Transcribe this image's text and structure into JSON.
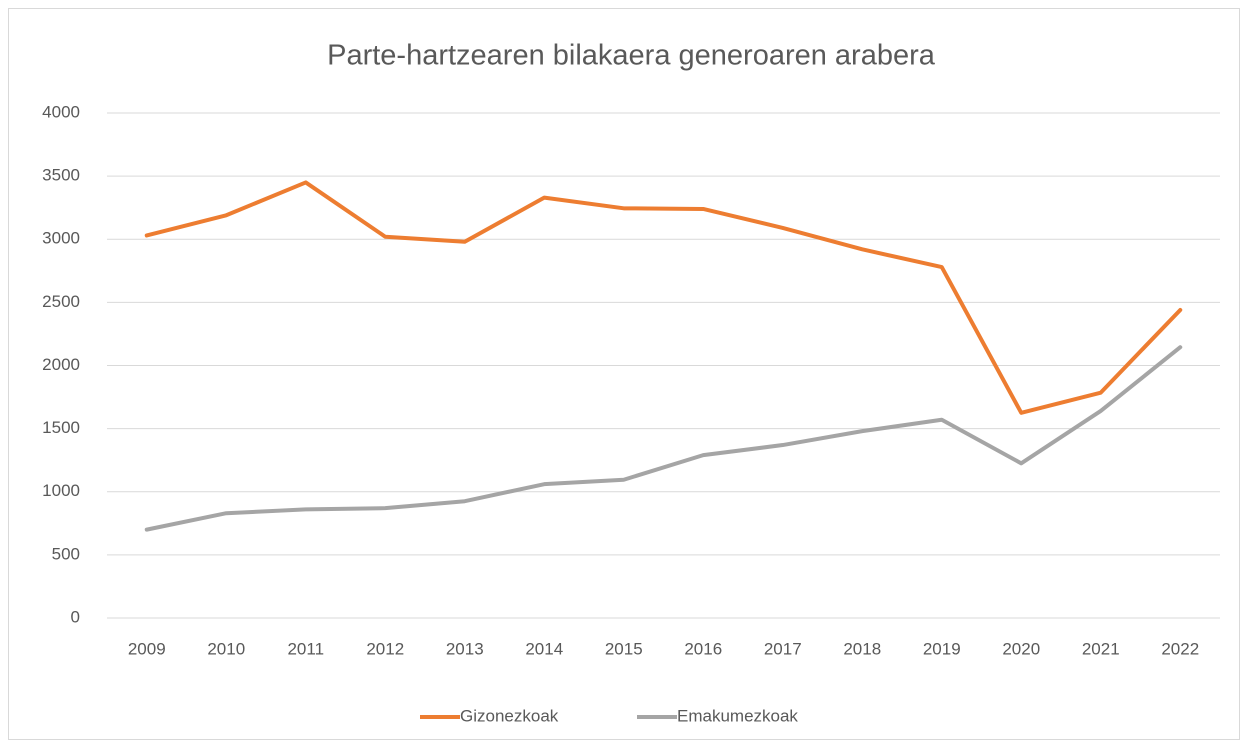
{
  "chart_data": {
    "type": "line",
    "title": "Parte-hartzearen bilakaera generoaren arabera",
    "categories": [
      "2009",
      "2010",
      "2011",
      "2012",
      "2013",
      "2014",
      "2015",
      "2016",
      "2017",
      "2018",
      "2019",
      "2020",
      "2021",
      "2022"
    ],
    "series": [
      {
        "name": "Gizonezkoak",
        "color": "#ed7d31",
        "values": [
          3030,
          3190,
          3450,
          3020,
          2980,
          3330,
          3245,
          3240,
          3090,
          2920,
          2780,
          1625,
          1785,
          2440
        ]
      },
      {
        "name": "Emakumezkoak",
        "color": "#a5a5a5",
        "values": [
          700,
          830,
          860,
          870,
          925,
          1060,
          1095,
          1290,
          1370,
          1480,
          1570,
          1225,
          1640,
          2145
        ]
      }
    ],
    "ylim": [
      0,
      4000
    ],
    "yticks": [
      0,
      500,
      1000,
      1500,
      2000,
      2500,
      3000,
      3500,
      4000
    ],
    "grid": true,
    "legend": "bottom"
  }
}
